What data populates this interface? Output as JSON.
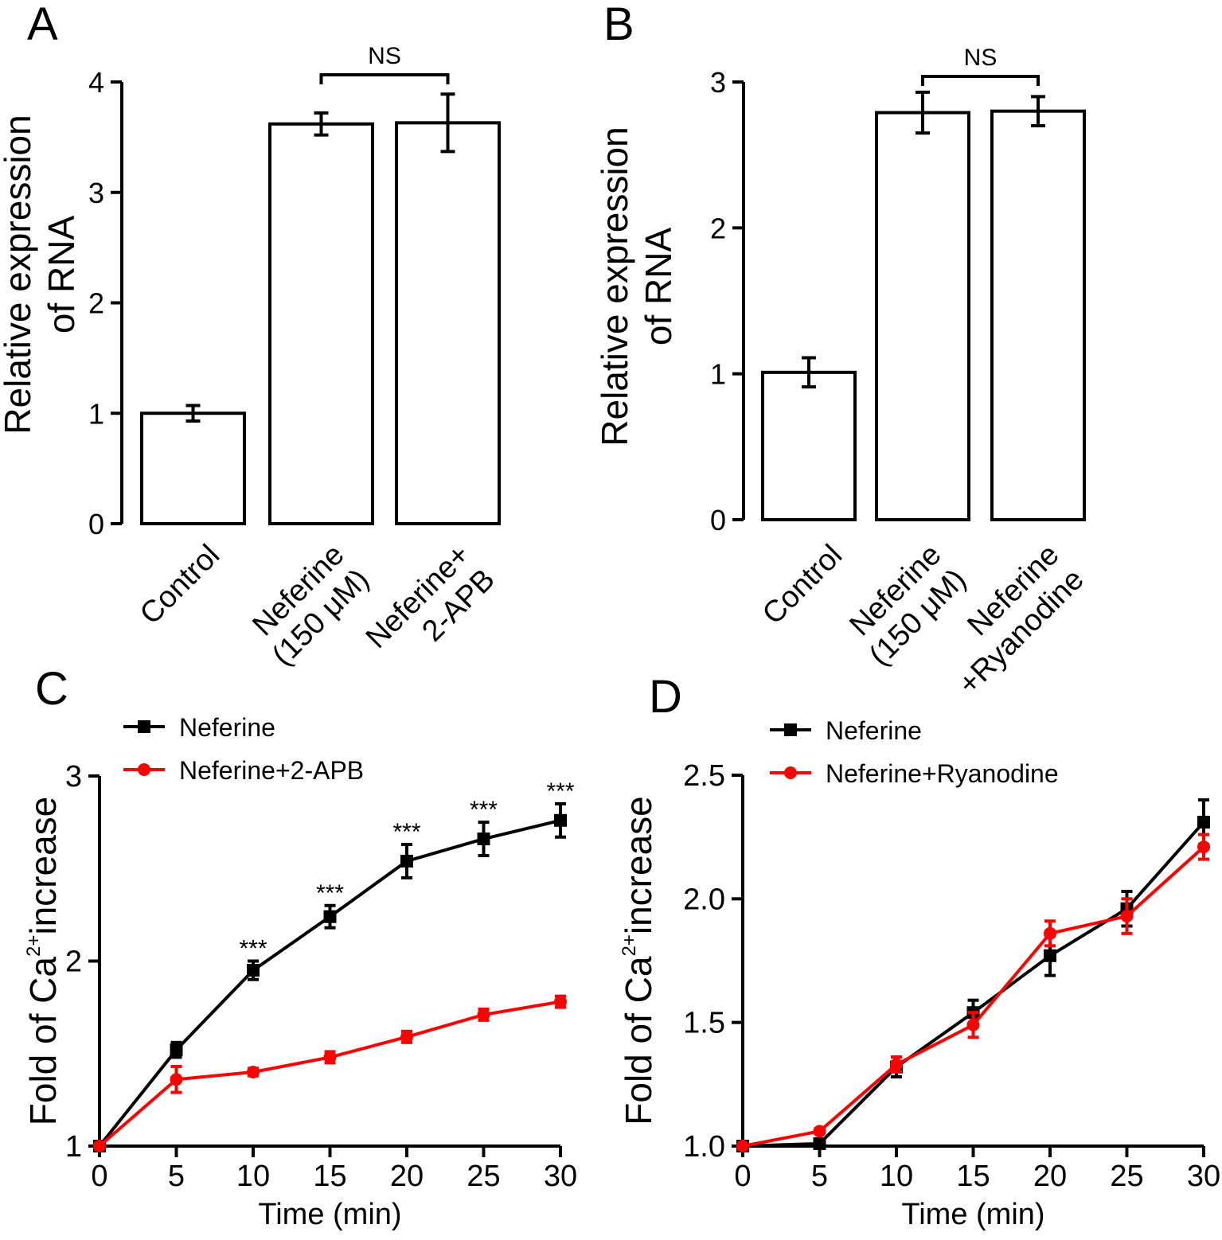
{
  "chart_data": [
    {
      "panel": "A",
      "type": "bar",
      "ylabel": [
        "Relative expression",
        "of RNA"
      ],
      "ylim": [
        0,
        4
      ],
      "yticks": [
        "0",
        "1",
        "2",
        "3",
        "4"
      ],
      "categories": [
        [
          "Control"
        ],
        [
          "Neferine",
          "(150 μM)"
        ],
        [
          "Neferine+",
          "2-APB"
        ]
      ],
      "values": [
        1.0,
        3.62,
        3.63
      ],
      "errors": [
        0.07,
        0.1,
        0.26
      ],
      "significance": {
        "label": "NS",
        "from": 1,
        "to": 2
      }
    },
    {
      "panel": "B",
      "type": "bar",
      "ylabel": [
        "Relative expression",
        "of RNA"
      ],
      "ylim": [
        0,
        3
      ],
      "yticks": [
        "0",
        "1",
        "2",
        "3"
      ],
      "categories": [
        [
          "Control"
        ],
        [
          "Neferine",
          "(150 μM)"
        ],
        [
          "Neferine",
          "+Ryanodine"
        ]
      ],
      "values": [
        1.01,
        2.79,
        2.8
      ],
      "errors": [
        0.1,
        0.14,
        0.1
      ],
      "significance": {
        "label": "NS",
        "from": 1,
        "to": 2
      }
    },
    {
      "panel": "C",
      "type": "line",
      "xlabel": "Time (min)",
      "ylabel_parts": [
        "Fold of Ca",
        "2+",
        "increase"
      ],
      "x": [
        0,
        5,
        10,
        15,
        20,
        25,
        30
      ],
      "xlim": [
        0,
        30
      ],
      "xticks": [
        "0",
        "5",
        "10",
        "15",
        "20",
        "25",
        "30"
      ],
      "ylim": [
        1,
        3
      ],
      "yticks": [
        "1",
        "2",
        "3"
      ],
      "series": [
        {
          "name": "Neferine",
          "color": "#000000",
          "marker": "square",
          "values": [
            1.0,
            1.52,
            1.95,
            2.24,
            2.54,
            2.66,
            2.76
          ],
          "errors": [
            0.0,
            0.04,
            0.05,
            0.06,
            0.09,
            0.09,
            0.09
          ]
        },
        {
          "name": "Neferine+2-APB",
          "color": "#ff0000",
          "marker": "circle",
          "values": [
            1.0,
            1.36,
            1.4,
            1.48,
            1.59,
            1.71,
            1.78
          ],
          "errors": [
            0.0,
            0.07,
            0.02,
            0.03,
            0.03,
            0.03,
            0.03
          ]
        }
      ],
      "annotations": [
        "***",
        "***",
        "***",
        "***",
        "***"
      ],
      "annotation_x": [
        10,
        15,
        20,
        25,
        30
      ]
    },
    {
      "panel": "D",
      "type": "line",
      "xlabel": "Time (min)",
      "ylabel_parts": [
        "Fold of Ca",
        "2+",
        "increase"
      ],
      "x": [
        0,
        5,
        10,
        15,
        20,
        25,
        30
      ],
      "xlim": [
        0,
        30
      ],
      "xticks": [
        "0",
        "5",
        "10",
        "15",
        "20",
        "25",
        "30"
      ],
      "ylim": [
        1.0,
        2.5
      ],
      "yticks": [
        "1.0",
        "1.5",
        "2.0",
        "2.5"
      ],
      "series": [
        {
          "name": "Neferine",
          "color": "#000000",
          "marker": "square",
          "values": [
            1.0,
            1.01,
            1.32,
            1.54,
            1.77,
            1.96,
            2.31
          ],
          "errors": [
            0.0,
            0.01,
            0.04,
            0.05,
            0.08,
            0.07,
            0.09
          ]
        },
        {
          "name": "Neferine+Ryanodine",
          "color": "#ff0000",
          "marker": "circle",
          "values": [
            1.0,
            1.06,
            1.33,
            1.49,
            1.86,
            1.93,
            2.21
          ],
          "errors": [
            0.0,
            0.01,
            0.03,
            0.05,
            0.05,
            0.07,
            0.05
          ]
        }
      ]
    }
  ]
}
